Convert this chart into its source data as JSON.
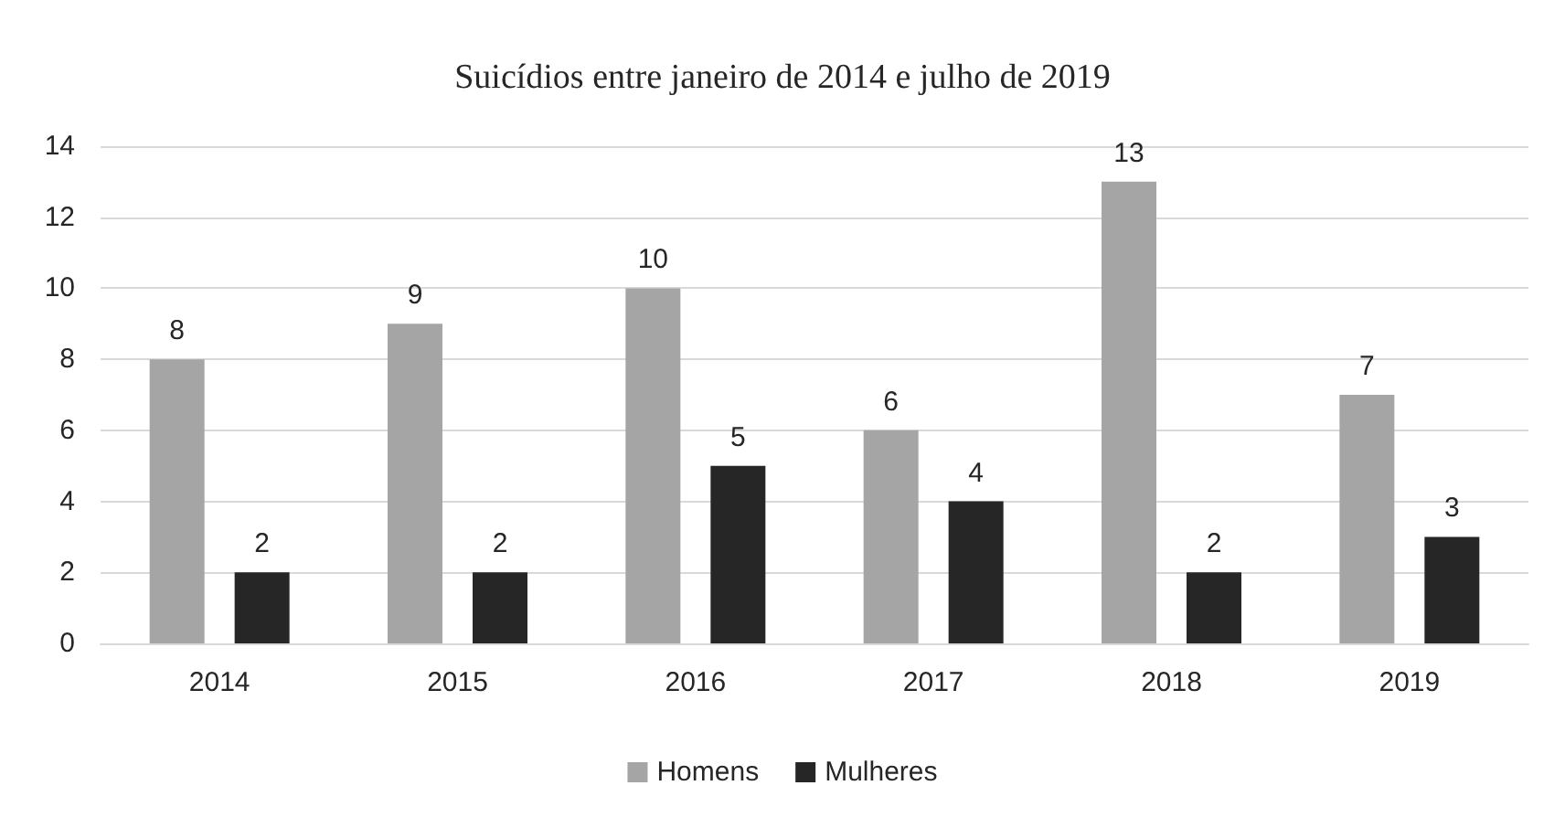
{
  "chart_data": {
    "type": "bar",
    "title": "Suicídios entre janeiro de 2014 e julho de 2019",
    "categories": [
      "2014",
      "2015",
      "2016",
      "2017",
      "2018",
      "2019"
    ],
    "series": [
      {
        "name": "Homens",
        "color": "#a5a5a5",
        "values": [
          8,
          9,
          10,
          6,
          13,
          7
        ]
      },
      {
        "name": "Mulheres",
        "color": "#262626",
        "values": [
          2,
          2,
          5,
          4,
          2,
          3
        ]
      }
    ],
    "ylim": [
      0,
      14
    ],
    "yticks": [
      0,
      2,
      4,
      6,
      8,
      10,
      12,
      14
    ],
    "grid": "y",
    "legend": "bottom",
    "data_labels": true
  }
}
